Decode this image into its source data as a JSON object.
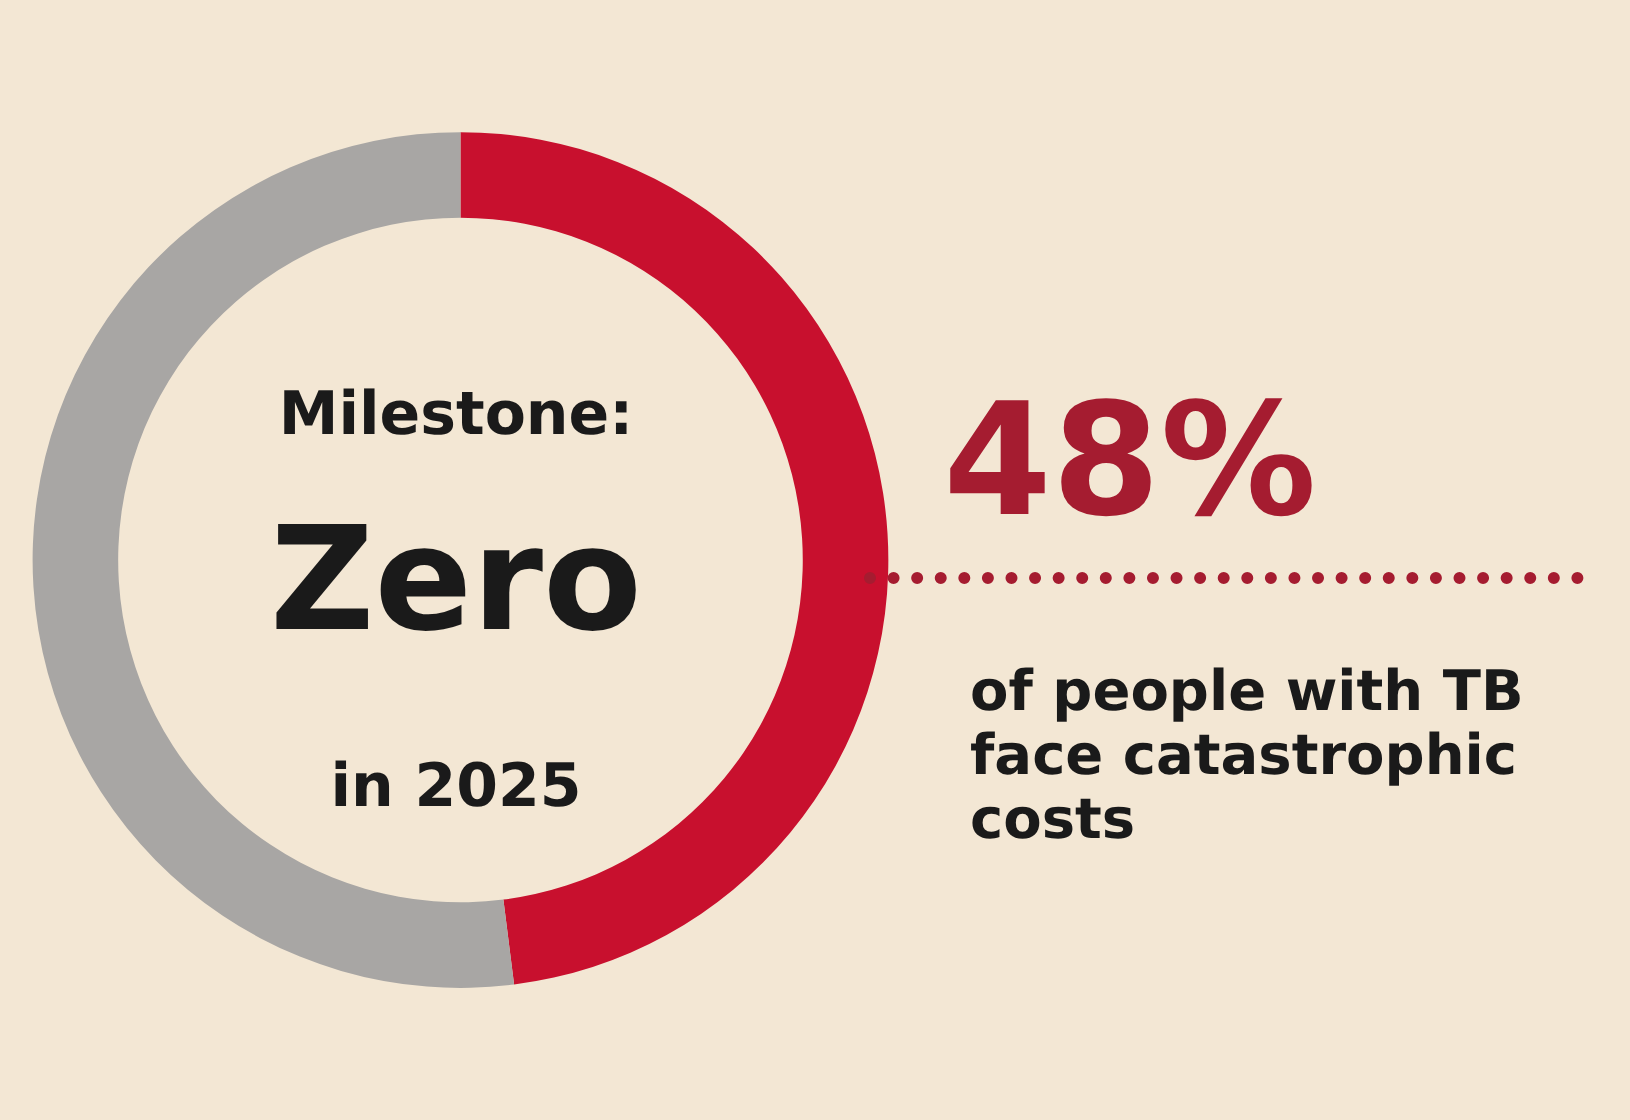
{
  "chart_data": {
    "type": "donut",
    "categories": [
      null,
      null
    ],
    "values": [
      48,
      52
    ],
    "colors": [
      "#c8102e",
      "#a8a6a4"
    ],
    "annotations": [
      "Milestone:",
      "Zero",
      "in 2025",
      "48%",
      "of people with TB face catastrophic costs"
    ]
  }
}
